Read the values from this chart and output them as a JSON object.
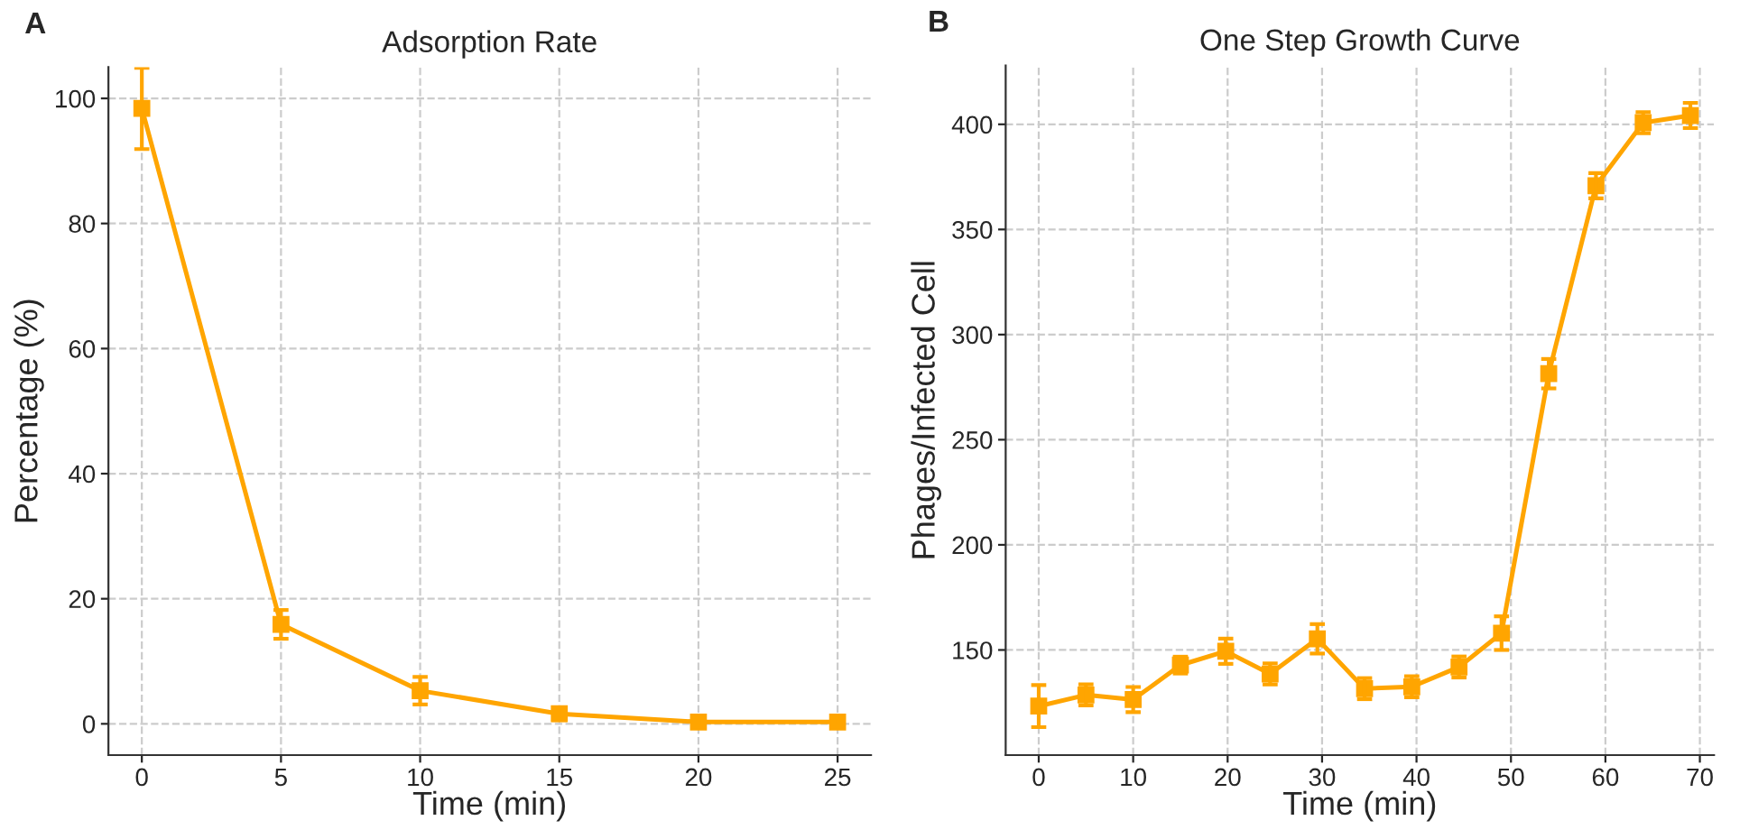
{
  "chart_data": [
    {
      "type": "line",
      "title": "Adsorption Rate",
      "xlabel": "Time (min)",
      "ylabel": "Percentage (%)",
      "annotations": [
        "A"
      ],
      "x": [
        0,
        5,
        10,
        15,
        20,
        25
      ],
      "values": [
        98.4,
        15.9,
        5.3,
        1.6,
        0.3,
        0.3
      ],
      "errors": [
        6.5,
        2.3,
        2.2,
        1,
        0.7,
        0.7
      ],
      "color": "#ffa500",
      "xlim": [
        -1.2,
        26.2
      ],
      "ylim": [
        -5,
        105
      ],
      "xticks": [
        0,
        5,
        10,
        15,
        20,
        25
      ],
      "yticks": [
        0,
        20,
        40,
        60,
        80,
        100
      ],
      "grid": true,
      "marker": "square",
      "line_style": "solid"
    },
    {
      "type": "line",
      "title": "One Step Growth Curve",
      "xlabel": "Time (min)",
      "ylabel": "Phages/Infected Cell",
      "annotations": [
        "B"
      ],
      "x": [
        0,
        5,
        10,
        15,
        19.8,
        24.5,
        29.5,
        34.5,
        39.5,
        44.5,
        49,
        54,
        59,
        64,
        69
      ],
      "values": [
        123.3,
        128.6,
        126.4,
        142.8,
        149.4,
        138.6,
        155.3,
        131.6,
        132.5,
        141.9,
        158,
        281.4,
        370.8,
        400.8,
        404.2
      ],
      "errors": [
        10,
        5,
        6,
        4,
        6,
        5,
        7,
        5,
        5,
        5,
        8,
        7,
        6,
        5,
        6
      ],
      "color": "#ffa500",
      "xlim": [
        -3.5,
        71.5
      ],
      "ylim": [
        100,
        428
      ],
      "xticks": [
        0,
        10,
        20,
        30,
        40,
        50,
        60,
        70
      ],
      "yticks": [
        150,
        200,
        250,
        300,
        350,
        400
      ],
      "grid": true,
      "marker": "square",
      "line_style": "solid"
    }
  ]
}
